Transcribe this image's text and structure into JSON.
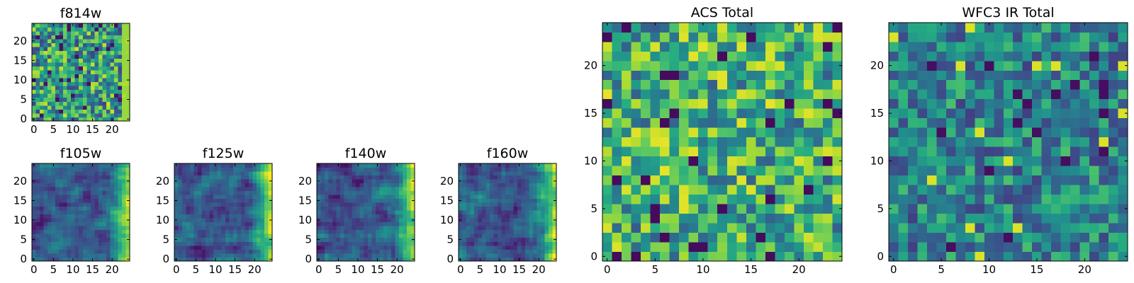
{
  "chart_data": [
    {
      "type": "heatmap",
      "title": "f814w",
      "colormap": "viridis",
      "nx": 25,
      "ny": 25,
      "vmin": 0,
      "vmax": 1,
      "seed": 814,
      "style": "noisy",
      "xlim": [
        0,
        25
      ],
      "ylim": [
        0,
        25
      ],
      "xticks": [
        0,
        5,
        10,
        15,
        20
      ],
      "yticks": [
        0,
        5,
        10,
        15,
        20
      ],
      "xtick_labels": [
        "0",
        "5",
        "10",
        "15",
        "20"
      ],
      "ytick_labels": [
        "0",
        "5",
        "10",
        "15",
        "20"
      ]
    },
    {
      "type": "heatmap",
      "title": "f105w",
      "colormap": "viridis",
      "nx": 25,
      "ny": 25,
      "vmin": 0,
      "vmax": 1,
      "seed": 105,
      "style": "smooth",
      "xlim": [
        0,
        25
      ],
      "ylim": [
        0,
        25
      ],
      "xticks": [
        0,
        5,
        10,
        15,
        20
      ],
      "yticks": [
        0,
        5,
        10,
        15,
        20
      ],
      "xtick_labels": [
        "0",
        "5",
        "10",
        "15",
        "20"
      ],
      "ytick_labels": [
        "0",
        "5",
        "10",
        "15",
        "20"
      ]
    },
    {
      "type": "heatmap",
      "title": "f125w",
      "colormap": "viridis",
      "nx": 25,
      "ny": 25,
      "vmin": 0,
      "vmax": 1,
      "seed": 125,
      "style": "smooth",
      "xlim": [
        0,
        25
      ],
      "ylim": [
        0,
        25
      ],
      "xticks": [
        0,
        5,
        10,
        15,
        20
      ],
      "yticks": [
        0,
        5,
        10,
        15,
        20
      ],
      "xtick_labels": [
        "0",
        "5",
        "10",
        "15",
        "20"
      ],
      "ytick_labels": [
        "0",
        "5",
        "10",
        "15",
        "20"
      ]
    },
    {
      "type": "heatmap",
      "title": "f140w",
      "colormap": "viridis",
      "nx": 25,
      "ny": 25,
      "vmin": 0,
      "vmax": 1,
      "seed": 140,
      "style": "smooth",
      "xlim": [
        0,
        25
      ],
      "ylim": [
        0,
        25
      ],
      "xticks": [
        0,
        5,
        10,
        15,
        20
      ],
      "yticks": [
        0,
        5,
        10,
        15,
        20
      ],
      "xtick_labels": [
        "0",
        "5",
        "10",
        "15",
        "20"
      ],
      "ytick_labels": [
        "0",
        "5",
        "10",
        "15",
        "20"
      ]
    },
    {
      "type": "heatmap",
      "title": "f160w",
      "colormap": "viridis",
      "nx": 25,
      "ny": 25,
      "vmin": 0,
      "vmax": 1,
      "seed": 160,
      "style": "smooth",
      "xlim": [
        0,
        25
      ],
      "ylim": [
        0,
        25
      ],
      "xticks": [
        0,
        5,
        10,
        15,
        20
      ],
      "yticks": [
        0,
        5,
        10,
        15,
        20
      ],
      "xtick_labels": [
        "0",
        "5",
        "10",
        "15",
        "20"
      ],
      "ytick_labels": [
        "0",
        "5",
        "10",
        "15",
        "20"
      ]
    },
    {
      "type": "heatmap",
      "title": "ACS Total",
      "colormap": "viridis",
      "nx": 25,
      "ny": 25,
      "vmin": 0,
      "vmax": 1,
      "seed": 901,
      "style": "bright",
      "xlim": [
        0,
        25
      ],
      "ylim": [
        0,
        25
      ],
      "xticks": [
        0,
        5,
        10,
        15,
        20
      ],
      "yticks": [
        0,
        5,
        10,
        15,
        20
      ],
      "xtick_labels": [
        "0",
        "5",
        "10",
        "15",
        "20"
      ],
      "ytick_labels": [
        "0",
        "5",
        "10",
        "15",
        "20"
      ]
    },
    {
      "type": "heatmap",
      "title": "WFC3 IR Total",
      "colormap": "viridis",
      "nx": 25,
      "ny": 25,
      "vmin": 0,
      "vmax": 1,
      "seed": 303,
      "style": "dim",
      "xlim": [
        0,
        25
      ],
      "ylim": [
        0,
        25
      ],
      "xticks": [
        0,
        5,
        10,
        15,
        20
      ],
      "yticks": [
        0,
        5,
        10,
        15,
        20
      ],
      "xtick_labels": [
        "0",
        "5",
        "10",
        "15",
        "20"
      ],
      "ytick_labels": [
        "0",
        "5",
        "10",
        "15",
        "20"
      ]
    }
  ]
}
